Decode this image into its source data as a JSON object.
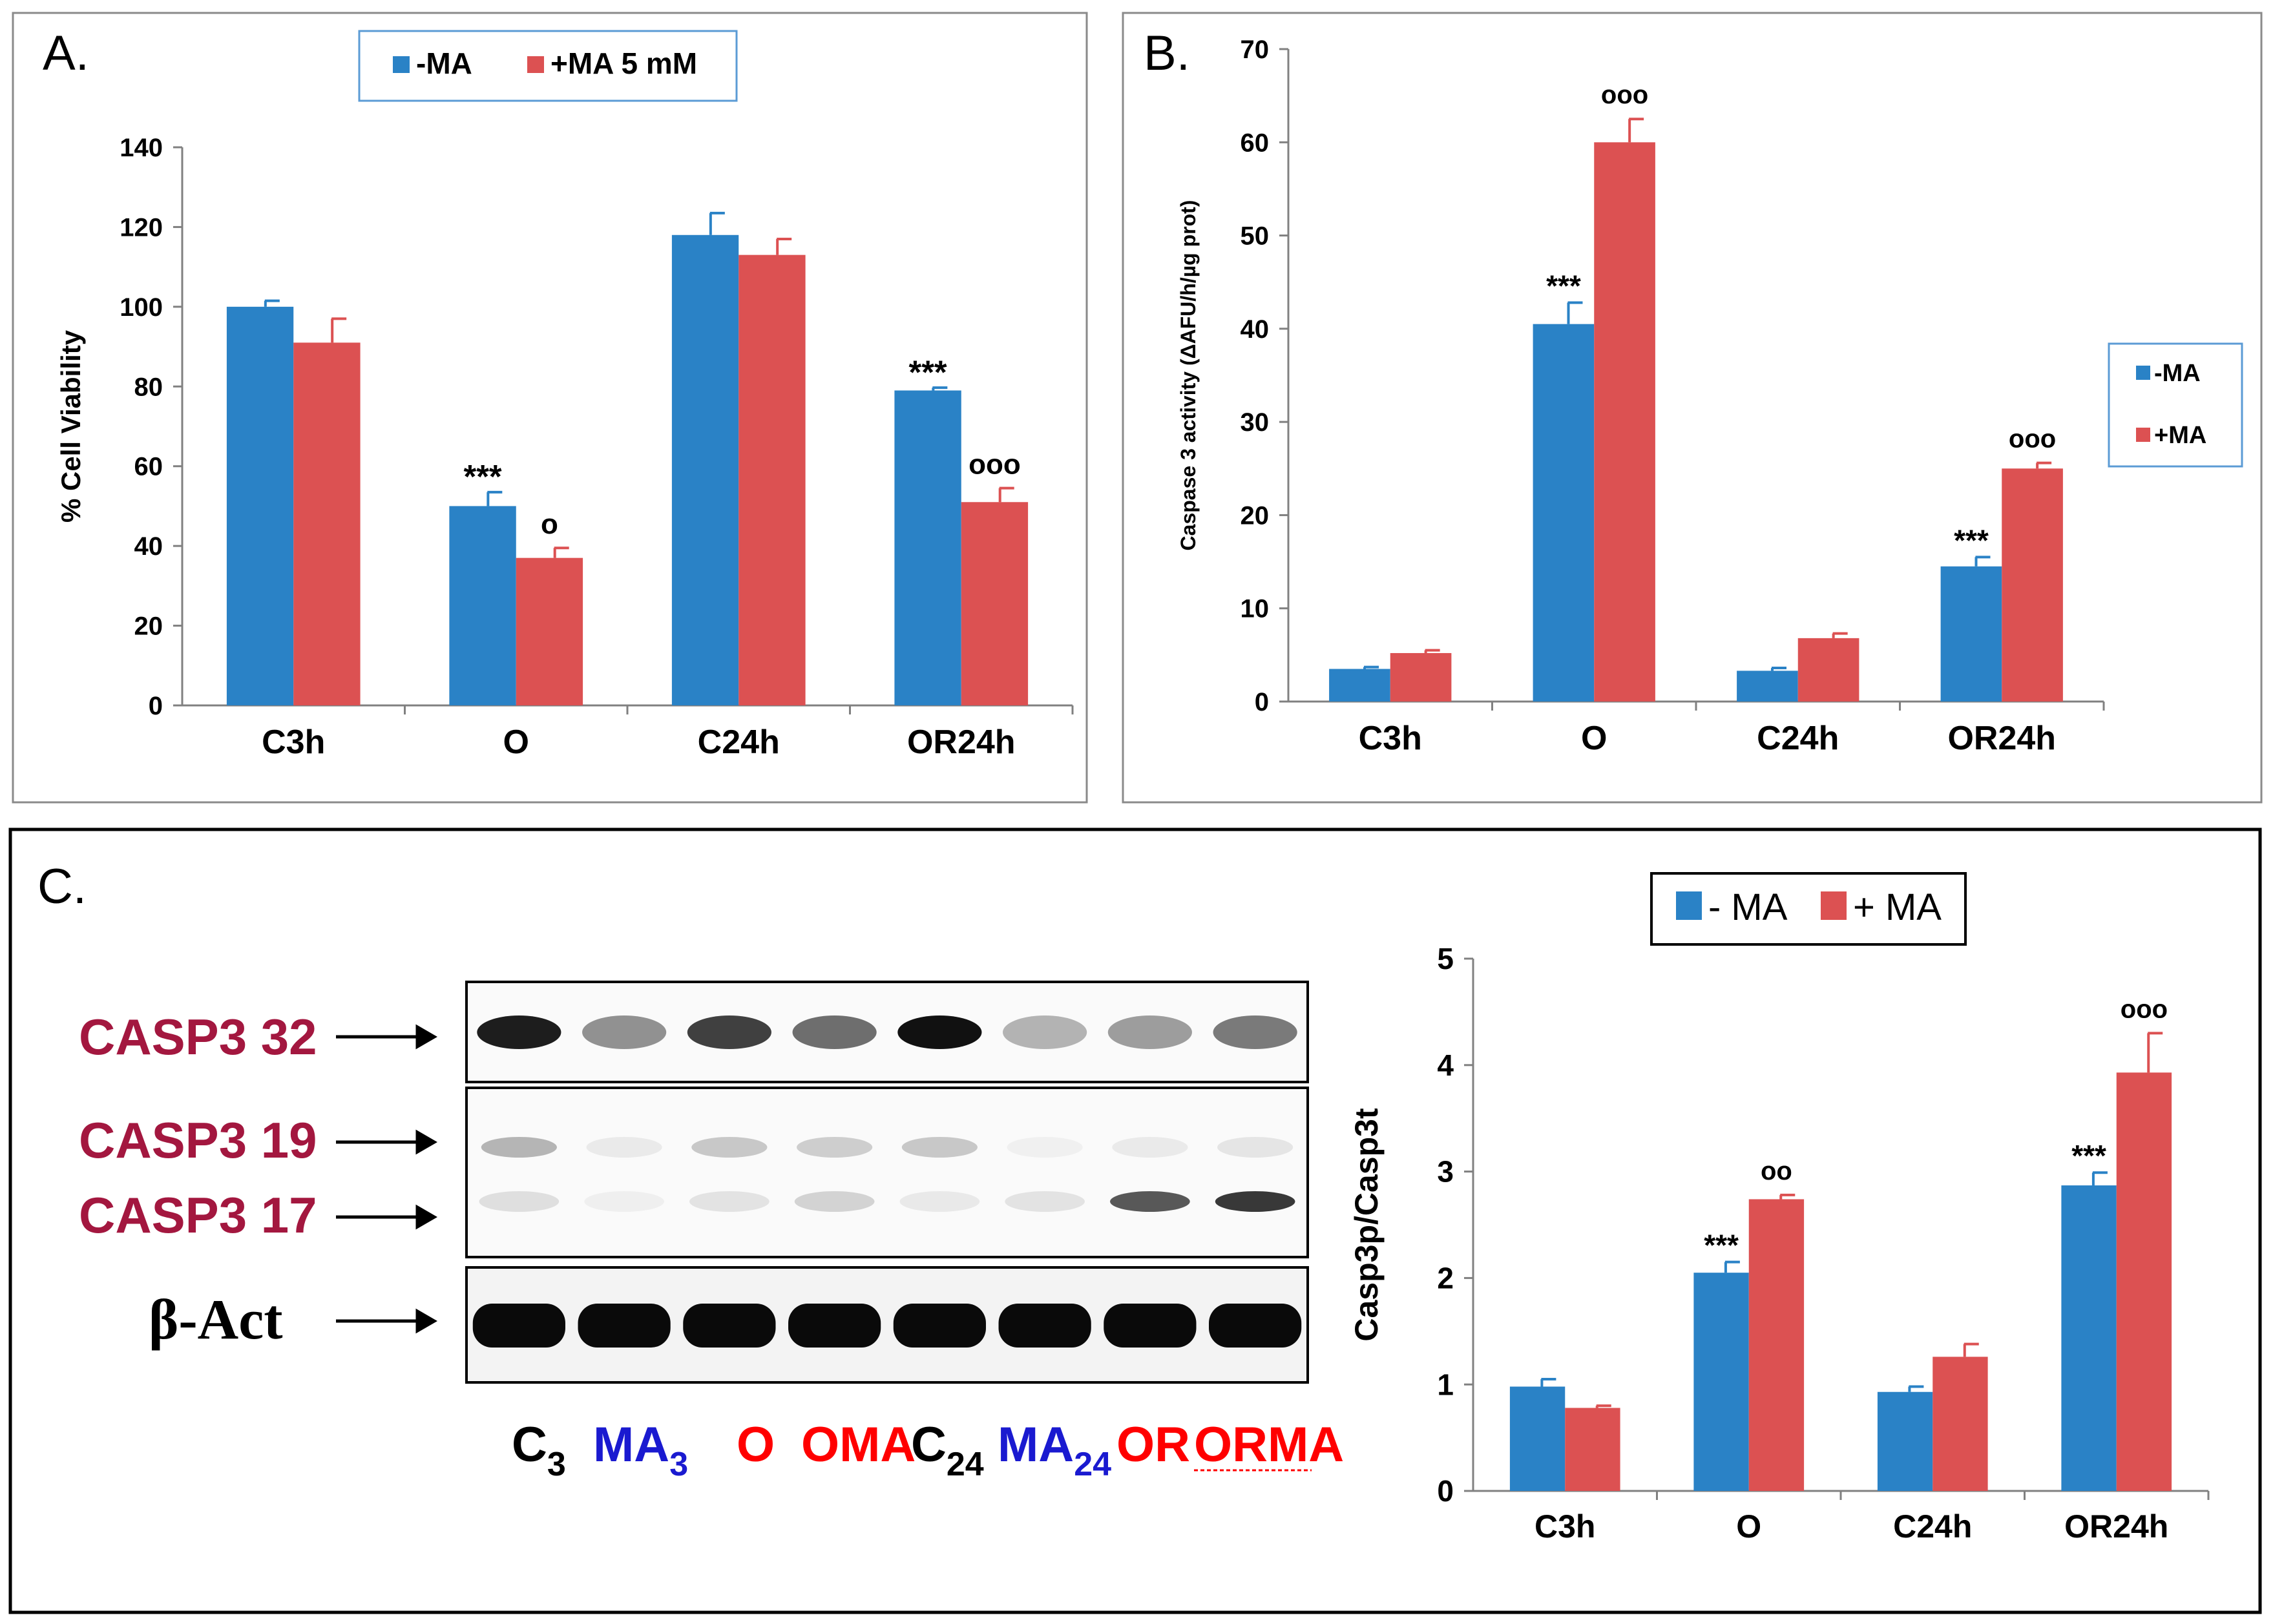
{
  "colors": {
    "minus": "#2a82c6",
    "plus": "#dc5152",
    "axis": "#808080",
    "text": "#000000",
    "casp": "#a3173f",
    "laneBlue": "#1a1ad0",
    "laneRed": "#ff0000"
  },
  "panelA": {
    "label": "A.",
    "legend": [
      "-MA",
      "+MA 5 mM"
    ],
    "chart_data": {
      "type": "bar",
      "categories": [
        "C3h",
        "O",
        "C24h",
        "OR24h"
      ],
      "series": [
        {
          "name": "-MA",
          "values": [
            100,
            50,
            118,
            79
          ],
          "errors": [
            1.5,
            3.5,
            5.5,
            0.7
          ]
        },
        {
          "name": "+MA 5 mM",
          "values": [
            91,
            37,
            113,
            51
          ],
          "errors": [
            6,
            2.5,
            4,
            3.5
          ]
        }
      ],
      "annotations": [
        {
          "category": "O",
          "series": 0,
          "text": "***"
        },
        {
          "category": "O",
          "series": 1,
          "text": "o"
        },
        {
          "category": "OR24h",
          "series": 0,
          "text": "***"
        },
        {
          "category": "OR24h",
          "series": 1,
          "text": "ooo"
        }
      ],
      "title": "",
      "xlabel": "",
      "ylabel": "% Cell Viability",
      "ylim": [
        0,
        140
      ],
      "yticks": [
        "0",
        "20",
        "40",
        "60",
        "80",
        "100",
        "120",
        "140"
      ],
      "legend_position": "top-center"
    }
  },
  "panelB": {
    "label": "B.",
    "legend": [
      "-MA",
      "+MA"
    ],
    "chart_data": {
      "type": "bar",
      "categories": [
        "C3h",
        "O",
        "C24h",
        "OR24h"
      ],
      "series": [
        {
          "name": "-MA",
          "values": [
            3.5,
            40.5,
            3.3,
            14.5
          ],
          "errors": [
            0.2,
            2.3,
            0.3,
            1
          ]
        },
        {
          "name": "+MA",
          "values": [
            5.2,
            60,
            6.8,
            25
          ],
          "errors": [
            0.3,
            2.5,
            0.5,
            0.6
          ]
        }
      ],
      "annotations": [
        {
          "category": "O",
          "series": 0,
          "text": "***"
        },
        {
          "category": "O",
          "series": 1,
          "text": "ooo"
        },
        {
          "category": "OR24h",
          "series": 0,
          "text": "***"
        },
        {
          "category": "OR24h",
          "series": 1,
          "text": "ooo"
        }
      ],
      "title": "",
      "xlabel": "",
      "ylabel": "Caspase 3 activity (ΔAFU/h/µg prot)",
      "ylim": [
        0,
        70
      ],
      "yticks": [
        "0",
        "10",
        "20",
        "30",
        "40",
        "50",
        "60",
        "70"
      ],
      "legend_position": "right"
    }
  },
  "panelC": {
    "label": "C.",
    "legend": [
      "- MA",
      "+ MA"
    ],
    "blot": {
      "rows": [
        "CASP3 32",
        "CASP3 19",
        "CASP3 17",
        "β-Act"
      ],
      "lanes": [
        {
          "base": "C",
          "sub": "3",
          "color": "black"
        },
        {
          "base": "MA",
          "sub": "3",
          "color": "blue"
        },
        {
          "base": "O",
          "sub": "",
          "color": "red"
        },
        {
          "base": "OMA",
          "sub": "",
          "color": "red"
        },
        {
          "base": "C",
          "sub": "24",
          "color": "black"
        },
        {
          "base": "MA",
          "sub": "24",
          "color": "blue"
        },
        {
          "base": "OR",
          "sub": "",
          "color": "red"
        },
        {
          "base": "ORMA",
          "sub": "",
          "color": "red"
        }
      ]
    },
    "chart_data": {
      "type": "bar",
      "categories": [
        "C3h",
        "O",
        "C24h",
        "OR24h"
      ],
      "series": [
        {
          "name": "- MA",
          "values": [
            0.98,
            2.05,
            0.93,
            2.87
          ],
          "errors": [
            0.07,
            0.1,
            0.05,
            0.12
          ]
        },
        {
          "name": "+ MA",
          "values": [
            0.78,
            2.74,
            1.26,
            3.93
          ],
          "errors": [
            0.02,
            0.04,
            0.12,
            0.37
          ]
        }
      ],
      "annotations": [
        {
          "category": "O",
          "series": 0,
          "text": "***"
        },
        {
          "category": "O",
          "series": 1,
          "text": "oo"
        },
        {
          "category": "OR24h",
          "series": 0,
          "text": "***"
        },
        {
          "category": "OR24h",
          "series": 1,
          "text": "ooo"
        }
      ],
      "title": "",
      "xlabel": "",
      "ylabel": "Casp3p/Casp3t",
      "ylim": [
        0,
        5
      ],
      "yticks": [
        "0",
        "1",
        "2",
        "3",
        "4",
        "5"
      ],
      "legend_position": "top-center"
    }
  }
}
